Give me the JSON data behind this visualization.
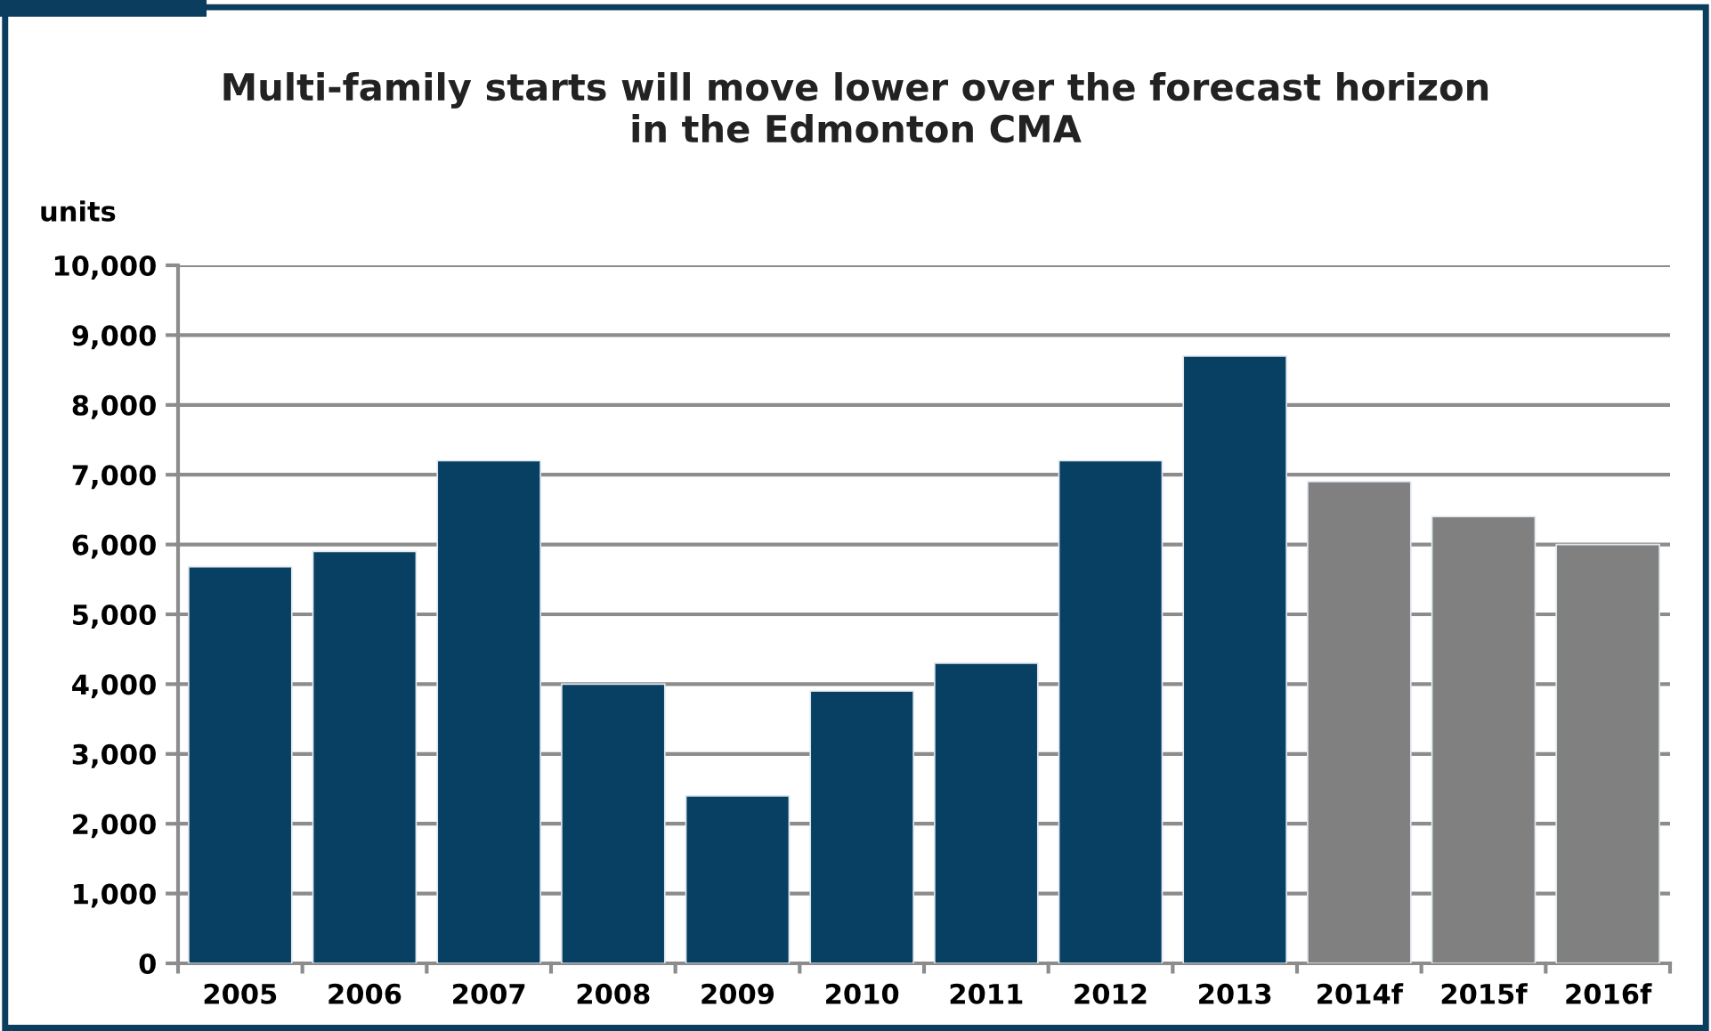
{
  "chart_data": {
    "type": "bar",
    "title": "Multi-family starts will move lower over the forecast horizon\nin the Edmonton CMA",
    "ylabel": "units",
    "categories": [
      "2005",
      "2006",
      "2007",
      "2008",
      "2009",
      "2010",
      "2011",
      "2012",
      "2013",
      "2014f",
      "2015f",
      "2016f"
    ],
    "values": [
      5680,
      5900,
      7200,
      4000,
      2400,
      3900,
      4300,
      7200,
      8700,
      6900,
      6400,
      6000
    ],
    "colors": [
      "#074063",
      "#074063",
      "#074063",
      "#074063",
      "#074063",
      "#074063",
      "#074063",
      "#074063",
      "#074063",
      "#808080",
      "#808080",
      "#808080"
    ],
    "ylim": [
      0,
      10000
    ],
    "yticks": [
      {
        "value": 0,
        "label": "0"
      },
      {
        "value": 1000,
        "label": "1,000"
      },
      {
        "value": 2000,
        "label": "2,000"
      },
      {
        "value": 3000,
        "label": "3,000"
      },
      {
        "value": 4000,
        "label": "4,000"
      },
      {
        "value": 5000,
        "label": "5,000"
      },
      {
        "value": 6000,
        "label": "6,000"
      },
      {
        "value": 7000,
        "label": "7,000"
      },
      {
        "value": 8000,
        "label": "8,000"
      },
      {
        "value": 9000,
        "label": "9,000"
      },
      {
        "value": 10000,
        "label": "10,000"
      }
    ],
    "grid": "y",
    "legend": false
  }
}
